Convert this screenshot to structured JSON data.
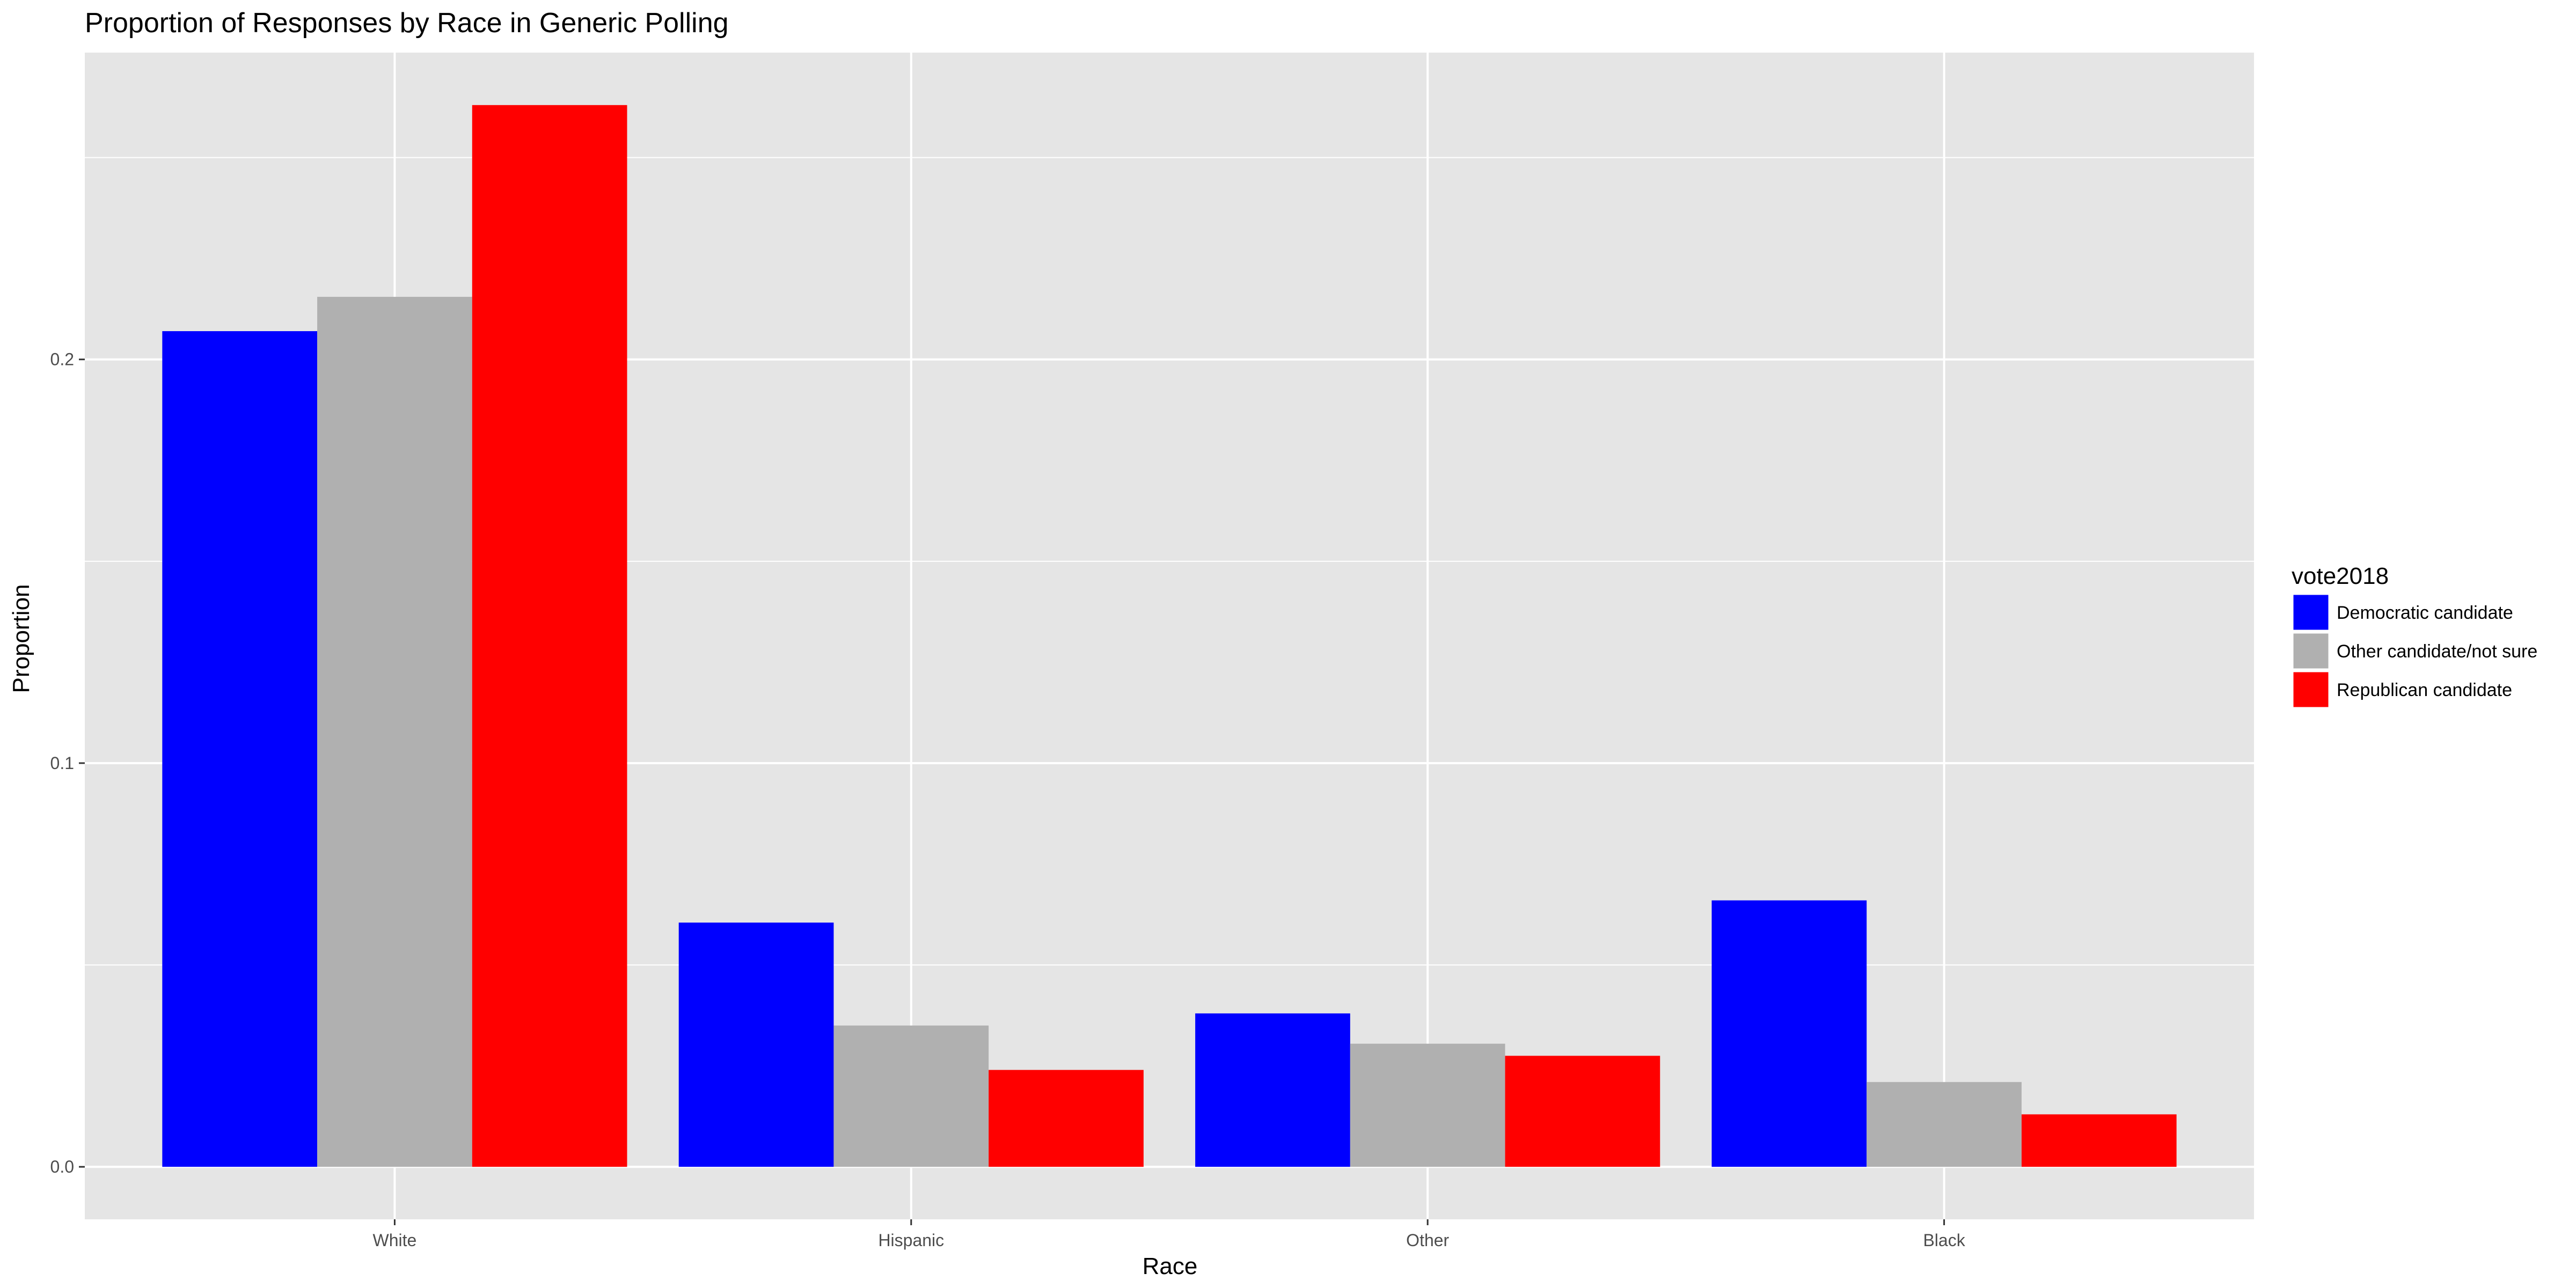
{
  "chart_data": {
    "type": "bar",
    "title": "Proportion of Responses by Race in Generic Polling",
    "xlabel": "Race",
    "ylabel": "Proportion",
    "categories": [
      "White",
      "Hispanic",
      "Other",
      "Black"
    ],
    "series": [
      {
        "name": "Democratic candidate",
        "color": "#0000ff",
        "values": [
          0.207,
          0.0605,
          0.038,
          0.066
        ]
      },
      {
        "name": "Other candidate/not sure",
        "color": "#b0b0b0",
        "values": [
          0.2155,
          0.035,
          0.0305,
          0.021
        ]
      },
      {
        "name": "Republican candidate",
        "color": "#ff0000",
        "values": [
          0.263,
          0.024,
          0.0275,
          0.013
        ]
      }
    ],
    "ylim": [
      -0.013,
      0.276
    ],
    "yticks": [
      0.0,
      0.1,
      0.2
    ],
    "ytick_labels": [
      "0.0",
      "0.1",
      "0.2"
    ],
    "grid": true,
    "legend_title": "vote2018",
    "legend_position": "right",
    "colors": {
      "panel_background": "#e5e5e5",
      "grid": "#ffffff",
      "tick_text": "#4d4d4d"
    }
  }
}
